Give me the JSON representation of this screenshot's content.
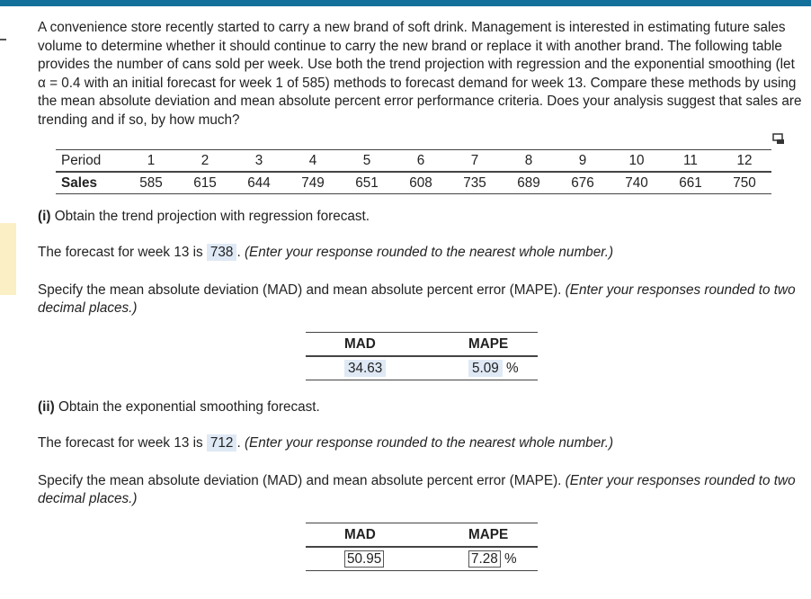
{
  "question": {
    "text": "A convenience store recently started to carry a new brand of soft drink. Management is interested in estimating future sales volume to determine whether it should continue to carry the new brand or replace it with another brand. The following table provides the number of cans sold per week. Use both the trend projection with regression and the exponential smoothing (let α = 0.4 with an initial forecast for week 1 of 585) methods to forecast demand for week 13. Compare these methods by using the mean absolute deviation and mean absolute percent error performance criteria. Does your analysis suggest that sales are trending and if so, by how much?"
  },
  "data_table": {
    "header": [
      "Period",
      "1",
      "2",
      "3",
      "4",
      "5",
      "6",
      "7",
      "8",
      "9",
      "10",
      "11",
      "12"
    ],
    "rows": [
      [
        "Sales",
        "585",
        "615",
        "644",
        "749",
        "651",
        "608",
        "735",
        "689",
        "676",
        "740",
        "661",
        "750"
      ]
    ]
  },
  "parts": [
    {
      "label": "(i)",
      "heading": "Obtain the trend projection with regression forecast.",
      "forecast_prefix": "The forecast for week 13 is",
      "forecast_answer": "738",
      "forecast_end": ".",
      "forecast_note": "(Enter your response rounded to the nearest whole number.)",
      "specify_text": "Specify the mean absolute deviation (MAD) and mean absolute percent error (MAPE).",
      "specify_note": "(Enter your responses rounded to two decimal places.)",
      "result_headers": [
        "MAD",
        "MAPE"
      ],
      "result_values": [
        "34.63",
        "5.09"
      ],
      "result_unit": "%"
    },
    {
      "label": "(ii)",
      "heading": "Obtain the exponential smoothing forecast.",
      "forecast_prefix": "The forecast for week 13 is",
      "forecast_answer": "712",
      "forecast_end": ".",
      "forecast_note": "(Enter your response rounded to the nearest whole number.)",
      "specify_text": "Specify the mean absolute deviation (MAD) and mean absolute percent error (MAPE).",
      "specify_note": "(Enter your responses rounded to two decimal places.)",
      "result_headers": [
        "MAD",
        "MAPE"
      ],
      "result_values": [
        "50.95",
        "7.28"
      ],
      "result_unit": "%"
    }
  ]
}
